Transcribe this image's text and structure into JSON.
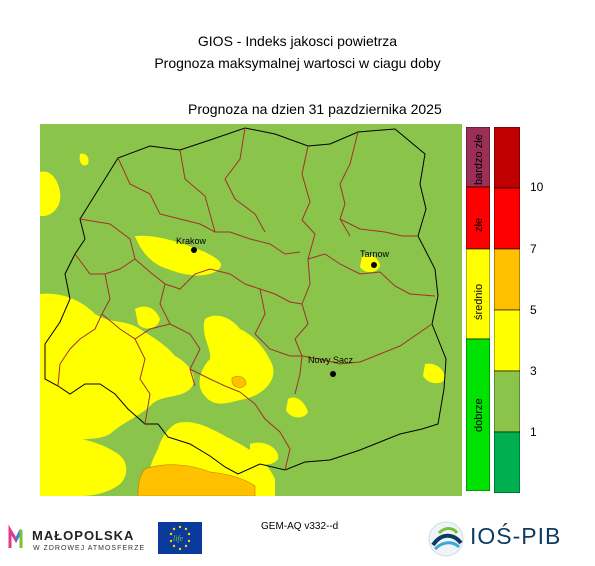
{
  "header": {
    "title": "GIOS - Indeks jakosci powietrza",
    "subtitle": "Prognoza maksymalnej wartosci w ciagu doby",
    "forecast_date": "Prognoza na dzien  31 pazdziernika 2025"
  },
  "map": {
    "cities": [
      {
        "name": "Krakow"
      },
      {
        "name": "Tarnow"
      },
      {
        "name": "Nowy Sacz"
      }
    ],
    "colors": {
      "good": "#8bc44a",
      "moderate": "#ffff00",
      "sufficient": "#ffc000",
      "border": "#a0322d"
    }
  },
  "legend": {
    "categories": [
      {
        "label": "bardzo złe",
        "color": "#9b2f56"
      },
      {
        "label": "złe",
        "color": "#ff0000"
      },
      {
        "label": "średnio",
        "color": "#ffff00"
      },
      {
        "label": "dobrze",
        "color": "#00e200"
      }
    ],
    "scale_colors": [
      "#c00000",
      "#ff0000",
      "#ffc000",
      "#ffff00",
      "#8bc44a",
      "#00b050"
    ],
    "ticks": [
      "10",
      "7",
      "5",
      "3",
      "1"
    ]
  },
  "footer": {
    "model": "GEM-AQ v332--d",
    "malopolska": "MAŁOPOLSKA",
    "malopolska_sub": "W ZDROWEJ ATMOSFERZE",
    "eu_logo": "life",
    "ios": "IOŚ-PIB"
  }
}
